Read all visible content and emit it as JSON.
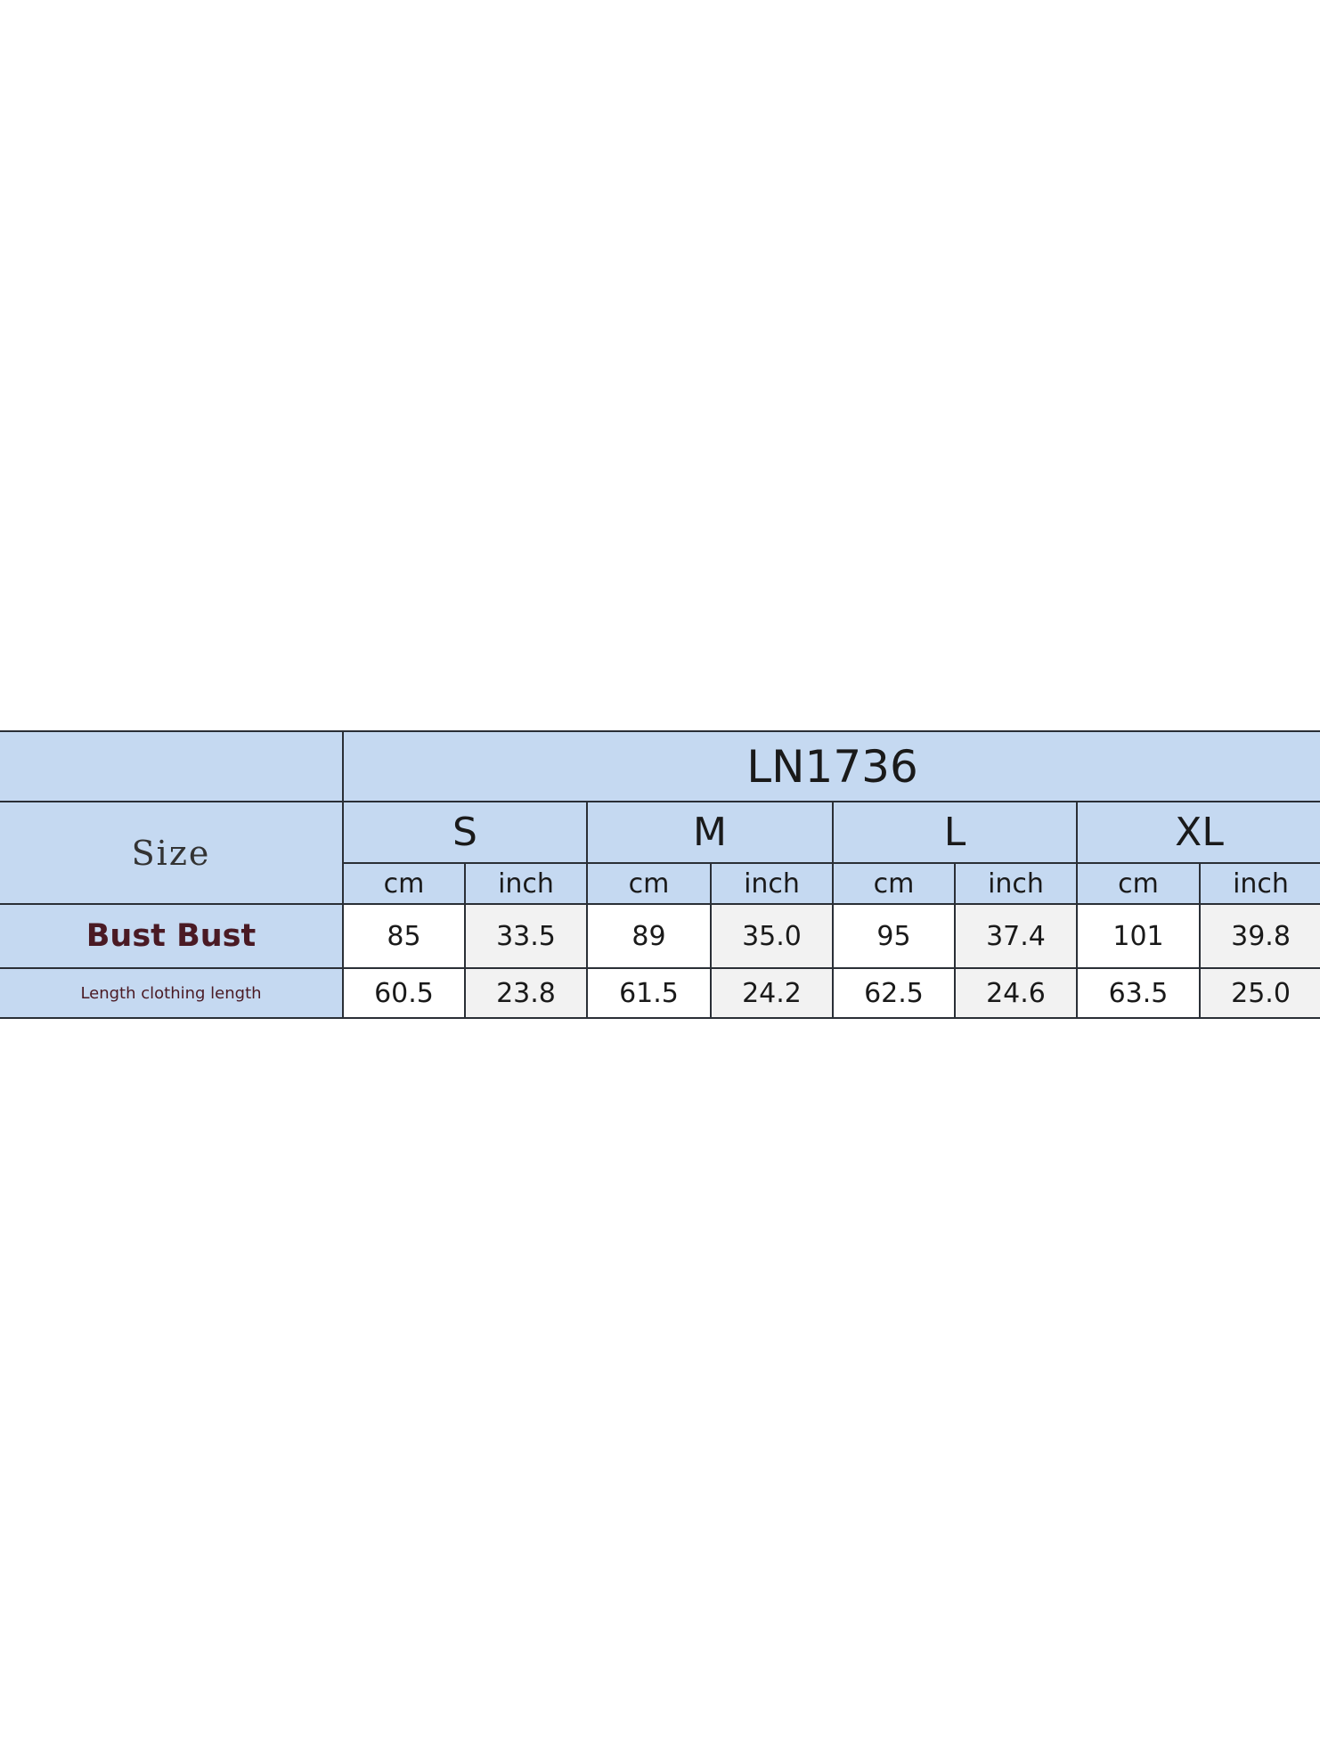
{
  "table": {
    "model": "LN1736",
    "size_label": "Size",
    "sizes": [
      "S",
      "M",
      "L",
      "XL"
    ],
    "units": [
      "cm",
      "inch"
    ],
    "rows": [
      {
        "label": "Bust Bust",
        "values": [
          "85",
          "33.5",
          "89",
          "35.0",
          "95",
          "37.4",
          "101",
          "39.8"
        ]
      },
      {
        "label": "Length clothing length",
        "values": [
          "60.5",
          "23.8",
          "61.5",
          "24.2",
          "62.5",
          "24.6",
          "63.5",
          "25.0"
        ]
      }
    ]
  },
  "colors": {
    "header_bg": "#c5d9f1",
    "label_text": "#4a1a24",
    "border": "#2a2f36"
  }
}
